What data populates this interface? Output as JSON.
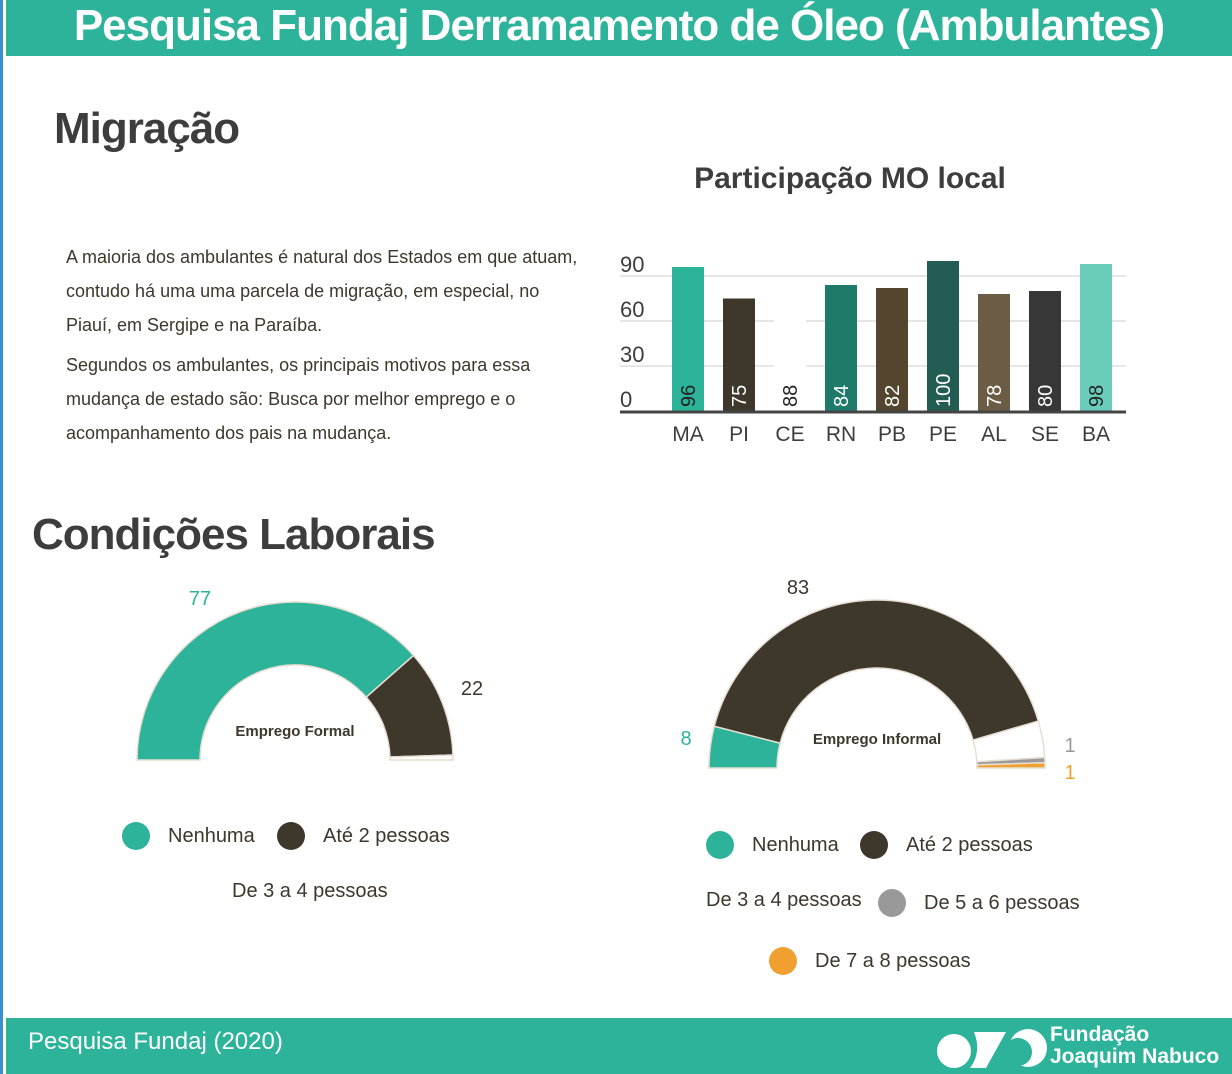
{
  "header": {
    "title": "Pesquisa Fundaj Derramamento de Óleo (Ambulantes)"
  },
  "migration": {
    "heading": "Migração",
    "paragraphs": [
      "A maioria dos ambulantes é natural dos Estados em que atuam, contudo há uma uma parcela de migração, em especial, no Piauí, em Sergipe e na Paraíba.",
      "Segundos os ambulantes, os principais motivos para essa mudança de estado são: Busca por melhor emprego e o acompanhamento dos pais na mudança."
    ]
  },
  "labor": {
    "heading": "Condições Laborais"
  },
  "chart_data": [
    {
      "type": "bar",
      "title": "Participação MO local",
      "categories": [
        "MA",
        "PI",
        "CE",
        "RN",
        "PB",
        "PE",
        "AL",
        "SE",
        "BA"
      ],
      "values": [
        96,
        75,
        88,
        84,
        82,
        100,
        78,
        80,
        98
      ],
      "colors": [
        "#2db39a",
        "#3d372c",
        "#ffffff",
        "#1f7a6a",
        "#54452f",
        "#225c52",
        "#6b5d45",
        "#373737",
        "#6acdba"
      ],
      "label_colors": [
        "#222222",
        "#ffffff",
        "#222222",
        "#ffffff",
        "#ffffff",
        "#ffffff",
        "#ffffff",
        "#ffffff",
        "#222222"
      ],
      "yticks": [
        0,
        30,
        60,
        90
      ],
      "ylim": [
        0,
        105
      ],
      "grid": true
    },
    {
      "type": "pie",
      "variant": "semicircle-donut",
      "center_label": "Emprego Formal",
      "slices": [
        {
          "name": "Nenhuma",
          "value": 77,
          "color": "#2db39a",
          "label": "77"
        },
        {
          "name": "Até 2 pessoas",
          "value": 22,
          "color": "#3d372c",
          "label": "22"
        },
        {
          "name": "De 3 a 4 pessoas",
          "value": 1,
          "color": "#ffffff",
          "label": ""
        }
      ],
      "legend": "bottom"
    },
    {
      "type": "pie",
      "variant": "semicircle-donut",
      "center_label": "Emprego Informal",
      "slices": [
        {
          "name": "Nenhuma",
          "value": 8,
          "color": "#2db39a",
          "label": "8"
        },
        {
          "name": "Até 2 pessoas",
          "value": 83,
          "color": "#3d372c",
          "label": "83"
        },
        {
          "name": "De 3 a 4 pessoas",
          "value": 7,
          "color": "#ffffff",
          "label": ""
        },
        {
          "name": "De 5 a 6 pessoas",
          "value": 1,
          "color": "#999999",
          "label": "1"
        },
        {
          "name": "De 7 a 8 pessoas",
          "value": 1,
          "color": "#f0a030",
          "label": "1"
        }
      ],
      "legend": "bottom"
    }
  ],
  "footer": {
    "source": "Pesquisa Fundaj (2020)",
    "logo_line1": "Fundação",
    "logo_line2": "Joaquim Nabuco"
  }
}
